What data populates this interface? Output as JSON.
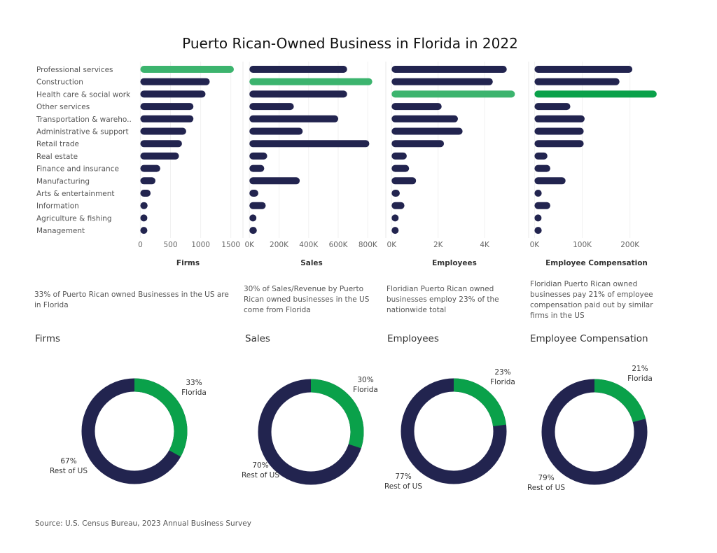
{
  "title": "Puerto Rican-Owned Business in Florida in 2022",
  "source": "Source: U.S. Census Bureau, 2023 Annual Business Survey",
  "colors": {
    "navy": "#22244f",
    "highlight": "#3cb46e",
    "highlight_dark": "#0aa14a",
    "grid": "#e8e8e8",
    "axis_text": "#666666"
  },
  "chart_data": [
    {
      "type": "bar",
      "orientation": "horizontal",
      "title": "Firms",
      "categories": [
        "Professional services",
        "Construction",
        "Health care & social work",
        "Other services",
        "Transportation & wareho..",
        "Administrative & support",
        "Retail trade",
        "Real estate",
        "Finance and insurance",
        "Manufacturing",
        "Arts & entertainment",
        "Information",
        "Agriculture & fishing",
        "Management"
      ],
      "values": [
        1550,
        1150,
        1080,
        880,
        880,
        760,
        690,
        640,
        330,
        250,
        170,
        120,
        60,
        55
      ],
      "highlight": "Professional services",
      "xlim": [
        -40,
        1620
      ],
      "ticks": [
        0,
        500,
        1000,
        1500
      ],
      "tick_labels": [
        "0",
        "500",
        "1000",
        "1500"
      ]
    },
    {
      "type": "bar",
      "orientation": "horizontal",
      "title": "Sales",
      "categories": [
        "Professional services",
        "Construction",
        "Health care & social work",
        "Other services",
        "Transportation & wareho..",
        "Administrative & support",
        "Retail trade",
        "Real estate",
        "Finance and insurance",
        "Manufacturing",
        "Arts & entertainment",
        "Information",
        "Agriculture & fishing",
        "Management"
      ],
      "values": [
        660000,
        830000,
        660000,
        300000,
        600000,
        360000,
        810000,
        120000,
        100000,
        340000,
        60000,
        110000,
        30000,
        50000
      ],
      "highlight": "Construction",
      "xlim": [
        -20000,
        860000
      ],
      "ticks": [
        0,
        200000,
        400000,
        600000,
        800000
      ],
      "tick_labels": [
        "0K",
        "200K",
        "400K",
        "600K",
        "800K"
      ]
    },
    {
      "type": "bar",
      "orientation": "horizontal",
      "title": "Employees",
      "categories": [
        "Professional services",
        "Construction",
        "Health care & social work",
        "Other services",
        "Transportation & wareho..",
        "Administrative & support",
        "Retail trade",
        "Real estate",
        "Finance and insurance",
        "Manufacturing",
        "Arts & entertainment",
        "Information",
        "Agriculture & fishing",
        "Management"
      ],
      "values": [
        4950,
        4350,
        5300,
        2150,
        2850,
        3050,
        2250,
        650,
        750,
        1050,
        350,
        550,
        200,
        250
      ],
      "highlight": "Health care & social work",
      "xlim": [
        -100,
        5500
      ],
      "ticks": [
        0,
        2000,
        4000
      ],
      "tick_labels": [
        "0K",
        "2K",
        "4K"
      ]
    },
    {
      "type": "bar",
      "orientation": "horizontal",
      "title": "Employee Compensation",
      "categories": [
        "Professional services",
        "Construction",
        "Health care & social work",
        "Other services",
        "Transportation & wareho..",
        "Administrative & support",
        "Retail trade",
        "Real estate",
        "Finance and insurance",
        "Manufacturing",
        "Arts & entertainment",
        "Information",
        "Agriculture & fishing",
        "Management"
      ],
      "values": [
        205000,
        178000,
        256000,
        75000,
        105000,
        103000,
        103000,
        27000,
        33000,
        65000,
        15000,
        33000,
        9000,
        15000
      ],
      "highlight": "Health care & social work",
      "xlim": [
        -5000,
        265000
      ],
      "ticks": [
        0,
        100000,
        200000
      ],
      "tick_labels": [
        "0K",
        "100K",
        "200K"
      ]
    },
    {
      "type": "pie",
      "title": "Firms",
      "note": "33% of Puerto Rican owned Businesses in the US are in Florida",
      "slices": [
        {
          "label": "Florida",
          "pct_label": "33%",
          "value": 33
        },
        {
          "label": "Rest of US",
          "pct_label": "67%",
          "value": 67
        }
      ]
    },
    {
      "type": "pie",
      "title": "Sales",
      "note": "30% of Sales/Revenue by Puerto Rican owned businesses in the US come from Florida",
      "slices": [
        {
          "label": "Florida",
          "pct_label": "30%",
          "value": 30
        },
        {
          "label": "Rest of US",
          "pct_label": "70%",
          "value": 70
        }
      ]
    },
    {
      "type": "pie",
      "title": "Employees",
      "note": "Floridian Puerto Rican owned businesses employ 23% of the nationwide total",
      "slices": [
        {
          "label": "Florida",
          "pct_label": "23%",
          "value": 23
        },
        {
          "label": "Rest of US",
          "pct_label": "77%",
          "value": 77
        }
      ]
    },
    {
      "type": "pie",
      "title": "Employee Compensation",
      "note": "Floridian Puerto Rican owned businesses pay 21% of employee compensation paid out by similar firms in the US",
      "slices": [
        {
          "label": "Florida",
          "pct_label": "21%",
          "value": 21
        },
        {
          "label": "Rest of US",
          "pct_label": "79%",
          "value": 79
        }
      ]
    }
  ]
}
